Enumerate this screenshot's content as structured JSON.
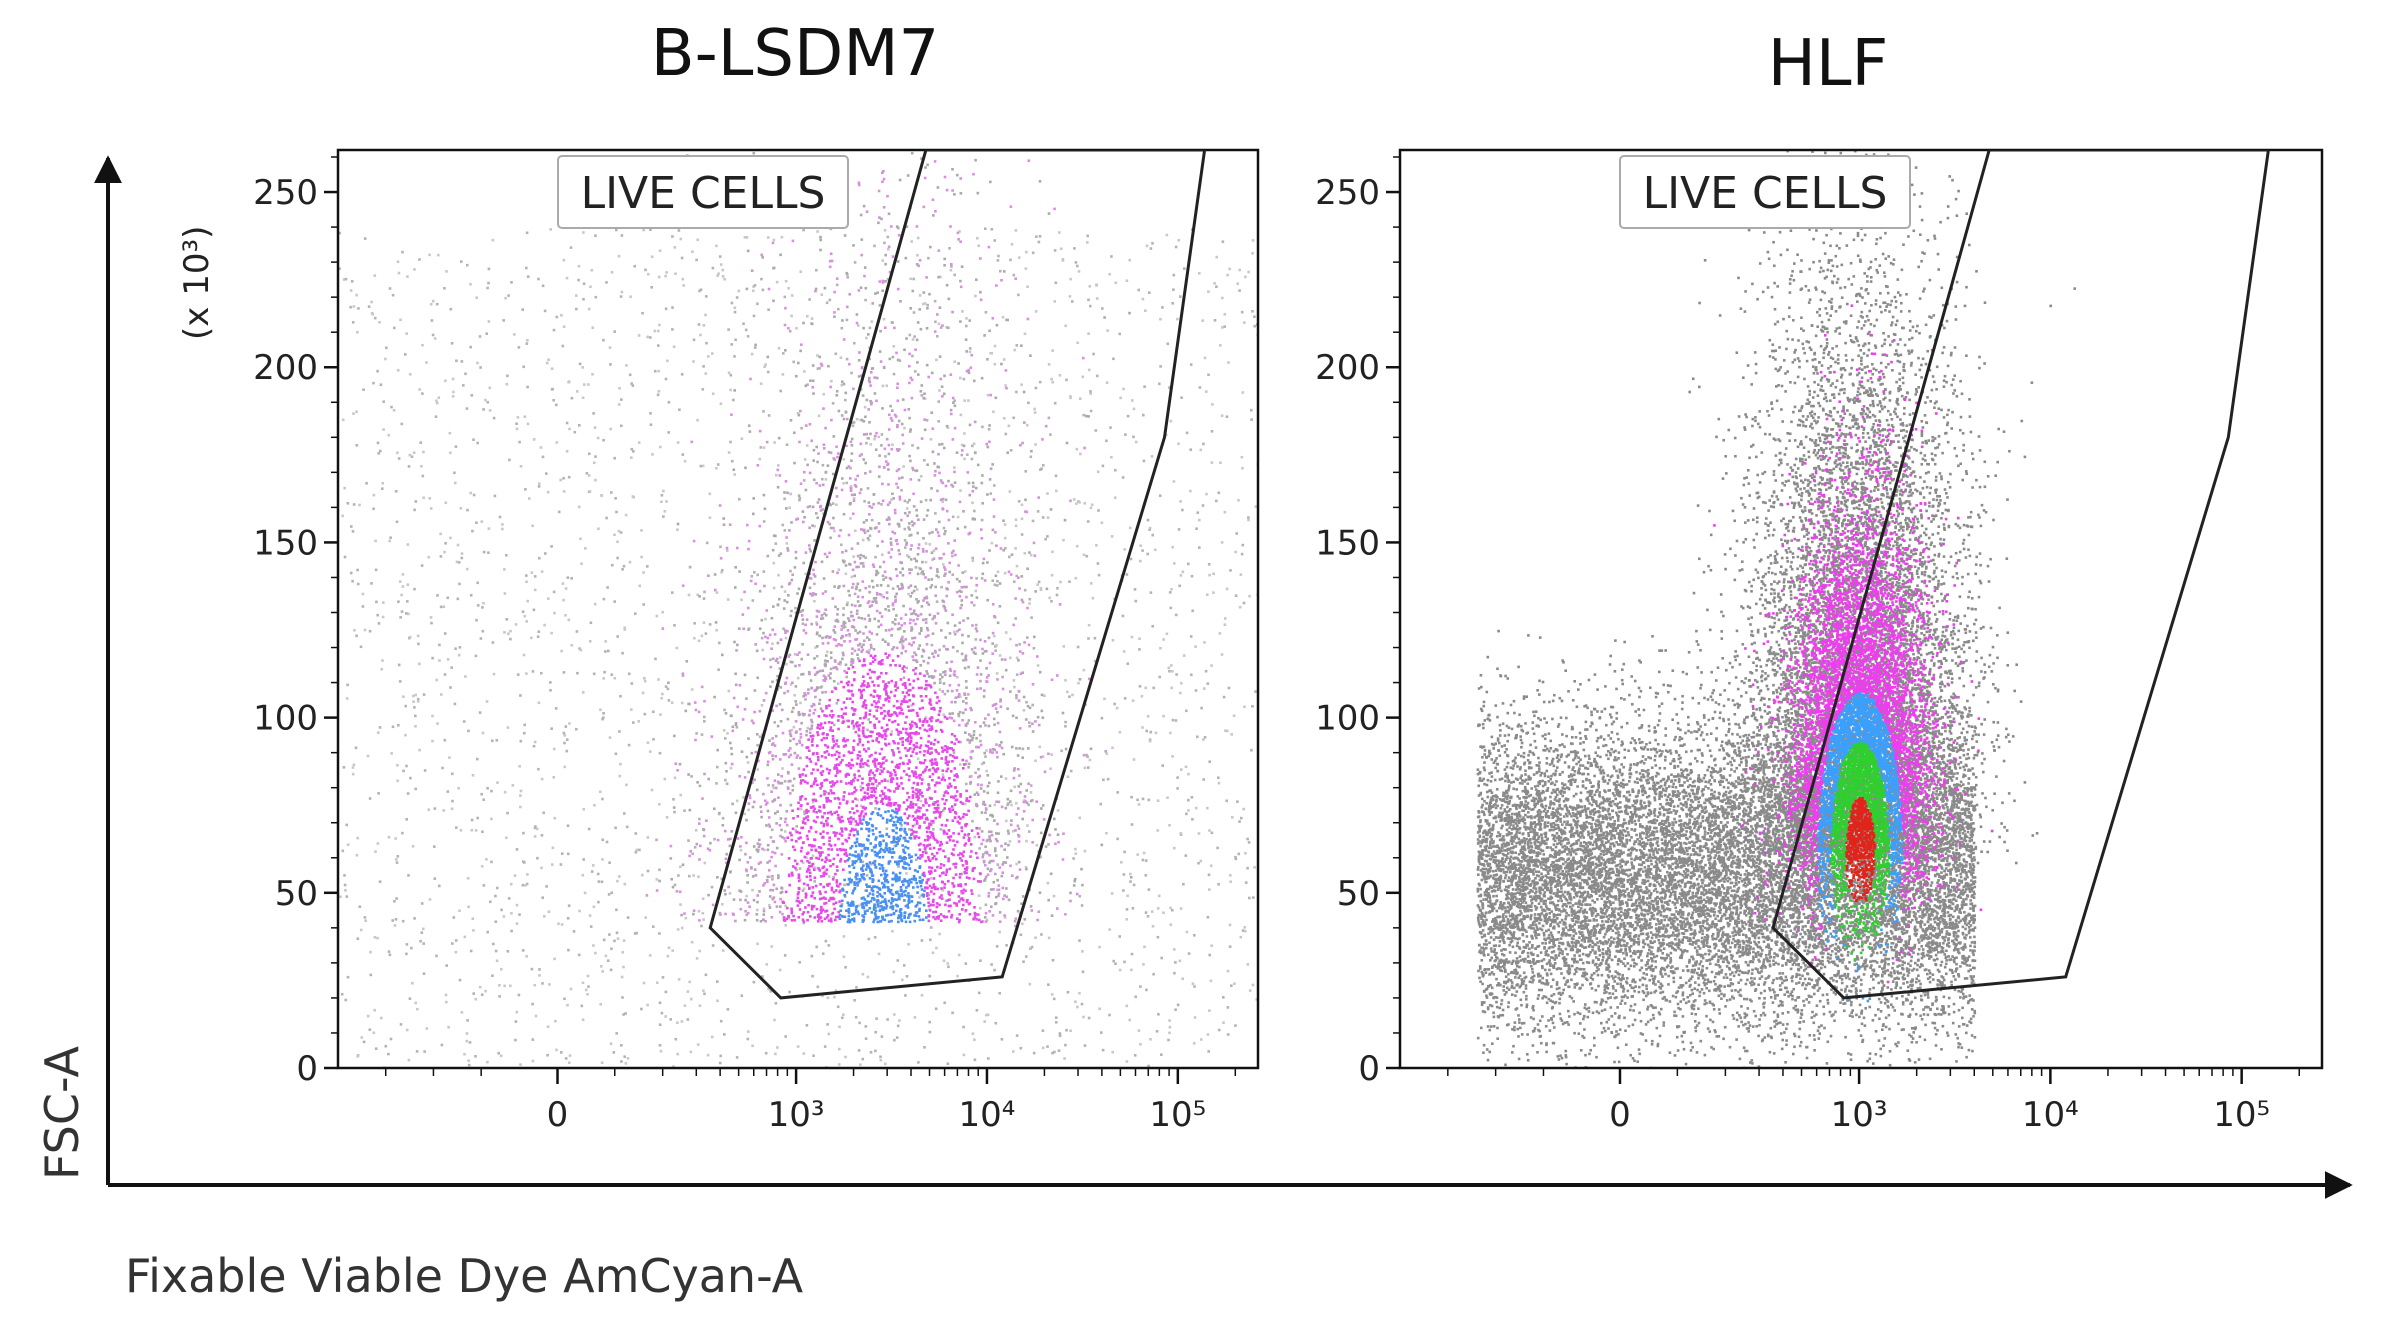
{
  "figure": {
    "x_axis_title": "Fixable Viable Dye AmCyan-A",
    "y_axis_title": "FSC-A"
  },
  "chart_data": [
    {
      "type": "scatter",
      "title": "B-LSDM7",
      "xlabel": "",
      "ylabel": "",
      "x_scale": "biexponential",
      "x_ticks": [
        {
          "value": 0,
          "label": "0"
        },
        {
          "value": 1000,
          "label": "10³"
        },
        {
          "value": 10000,
          "label": "10⁴"
        },
        {
          "value": 100000,
          "label": "10⁵"
        }
      ],
      "y_multiplier_label": "(x 10³)",
      "y_ticks": [
        {
          "value": 0,
          "label": "0"
        },
        {
          "value": 50,
          "label": "50"
        },
        {
          "value": 100,
          "label": "100"
        },
        {
          "value": 150,
          "label": "150"
        },
        {
          "value": 200,
          "label": "200"
        },
        {
          "value": 250,
          "label": "250"
        }
      ],
      "ylim": [
        0,
        262
      ],
      "gate": {
        "label": "LIVE CELLS",
        "vertices_x_log10": [
          2.55,
          2.92,
          4.08,
          4.93,
          5.14,
          3.68
        ],
        "vertices_y": [
          40,
          20,
          26,
          180,
          262,
          262
        ]
      },
      "population": {
        "center_x_log10": 3.45,
        "center_y": 42,
        "density": "sparse",
        "peak_color": "#4a90f0"
      }
    },
    {
      "type": "scatter",
      "title": "HLF",
      "xlabel": "",
      "ylabel": "",
      "x_scale": "biexponential",
      "x_ticks": [
        {
          "value": 0,
          "label": "0"
        },
        {
          "value": 1000,
          "label": "10³"
        },
        {
          "value": 10000,
          "label": "10⁴"
        },
        {
          "value": 100000,
          "label": "10⁵"
        }
      ],
      "y_ticks": [
        {
          "value": 0,
          "label": "0"
        },
        {
          "value": 50,
          "label": "50"
        },
        {
          "value": 100,
          "label": "100"
        },
        {
          "value": 150,
          "label": "150"
        },
        {
          "value": 200,
          "label": "200"
        },
        {
          "value": 250,
          "label": "250"
        }
      ],
      "ylim": [
        0,
        262
      ],
      "gate": {
        "label": "LIVE CELLS",
        "vertices_x_log10": [
          2.55,
          2.92,
          4.08,
          4.93,
          5.14,
          3.68
        ],
        "vertices_y": [
          40,
          20,
          26,
          180,
          262,
          262
        ]
      },
      "population": {
        "center_x_log10": 3.0,
        "center_y": 62,
        "density": "dense",
        "peak_color": "#e0241a"
      }
    }
  ]
}
